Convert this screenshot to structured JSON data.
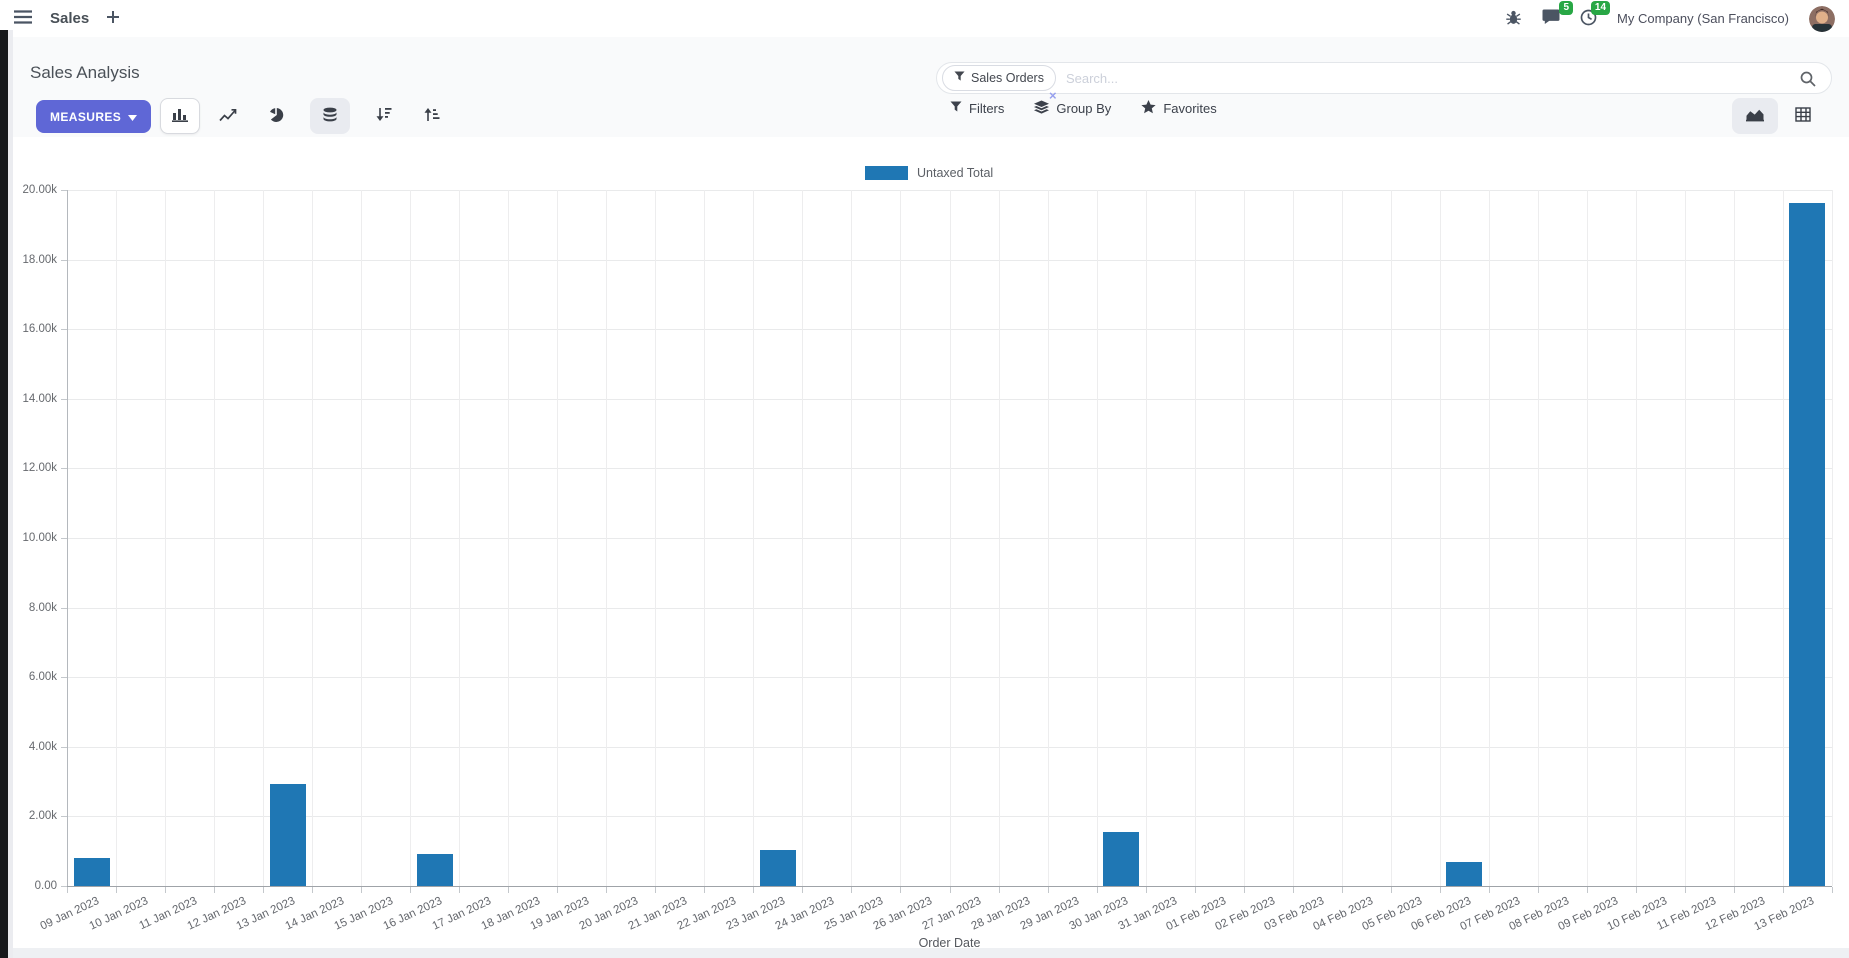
{
  "navbar": {
    "brand": "Sales",
    "badges": {
      "chat": "5",
      "activities": "14"
    },
    "company": "My Company (San Francisco)"
  },
  "control_panel": {
    "breadcrumb": "Sales Analysis",
    "measures_label": "MEASURES",
    "search": {
      "facet_label": "Sales Orders",
      "facet_remove": "×",
      "placeholder": "Search..."
    },
    "buttons": {
      "filters": "Filters",
      "group_by": "Group By",
      "favorites": "Favorites"
    }
  },
  "colors": {
    "accent": "#5f67d6",
    "badge": "#28a745"
  },
  "chart_data": {
    "type": "bar",
    "title": "",
    "legend": [
      "Untaxed Total"
    ],
    "legend_position": "top",
    "series_color": "#1f77b4",
    "xlabel": "Order Date",
    "ylabel": "",
    "ylim": [
      0,
      20000
    ],
    "grid": true,
    "y_ticks": [
      "0.00",
      "2.00k",
      "4.00k",
      "6.00k",
      "8.00k",
      "10.00k",
      "12.00k",
      "14.00k",
      "16.00k",
      "18.00k",
      "20.00k"
    ],
    "categories": [
      "09 Jan 2023",
      "10 Jan 2023",
      "11 Jan 2023",
      "12 Jan 2023",
      "13 Jan 2023",
      "14 Jan 2023",
      "15 Jan 2023",
      "16 Jan 2023",
      "17 Jan 2023",
      "18 Jan 2023",
      "19 Jan 2023",
      "20 Jan 2023",
      "21 Jan 2023",
      "22 Jan 2023",
      "23 Jan 2023",
      "24 Jan 2023",
      "25 Jan 2023",
      "26 Jan 2023",
      "27 Jan 2023",
      "28 Jan 2023",
      "29 Jan 2023",
      "30 Jan 2023",
      "31 Jan 2023",
      "01 Feb 2023",
      "02 Feb 2023",
      "03 Feb 2023",
      "04 Feb 2023",
      "05 Feb 2023",
      "06 Feb 2023",
      "07 Feb 2023",
      "08 Feb 2023",
      "09 Feb 2023",
      "10 Feb 2023",
      "11 Feb 2023",
      "12 Feb 2023",
      "13 Feb 2023"
    ],
    "values": [
      800,
      0,
      0,
      0,
      2920,
      0,
      0,
      930,
      0,
      0,
      0,
      0,
      0,
      0,
      1040,
      0,
      0,
      0,
      0,
      0,
      0,
      1560,
      0,
      0,
      0,
      0,
      0,
      0,
      690,
      0,
      0,
      0,
      0,
      0,
      0,
      19630
    ]
  }
}
